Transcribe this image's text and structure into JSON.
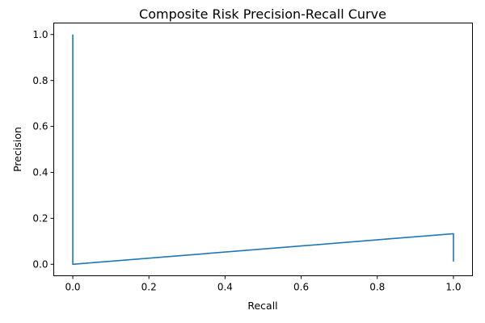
{
  "chart_data": {
    "type": "line",
    "title": "Composite Risk Precision-Recall Curve",
    "xlabel": "Recall",
    "ylabel": "Precision",
    "xlim": [
      -0.05,
      1.05
    ],
    "ylim": [
      -0.05,
      1.05
    ],
    "x_ticks": [
      0.0,
      0.2,
      0.4,
      0.6,
      0.8,
      1.0
    ],
    "x_tick_labels": [
      "0.0",
      "0.2",
      "0.4",
      "0.6",
      "0.8",
      "1.0"
    ],
    "y_ticks": [
      0.0,
      0.2,
      0.4,
      0.6,
      0.8,
      1.0
    ],
    "y_tick_labels": [
      "0.0",
      "0.2",
      "0.4",
      "0.6",
      "0.8",
      "1.0"
    ],
    "grid": false,
    "series": [
      {
        "color": "#1f77b4",
        "x": [
          0.0,
          0.0,
          1.0,
          1.0
        ],
        "y": [
          1.0,
          0.0,
          0.133,
          0.012
        ]
      }
    ]
  }
}
